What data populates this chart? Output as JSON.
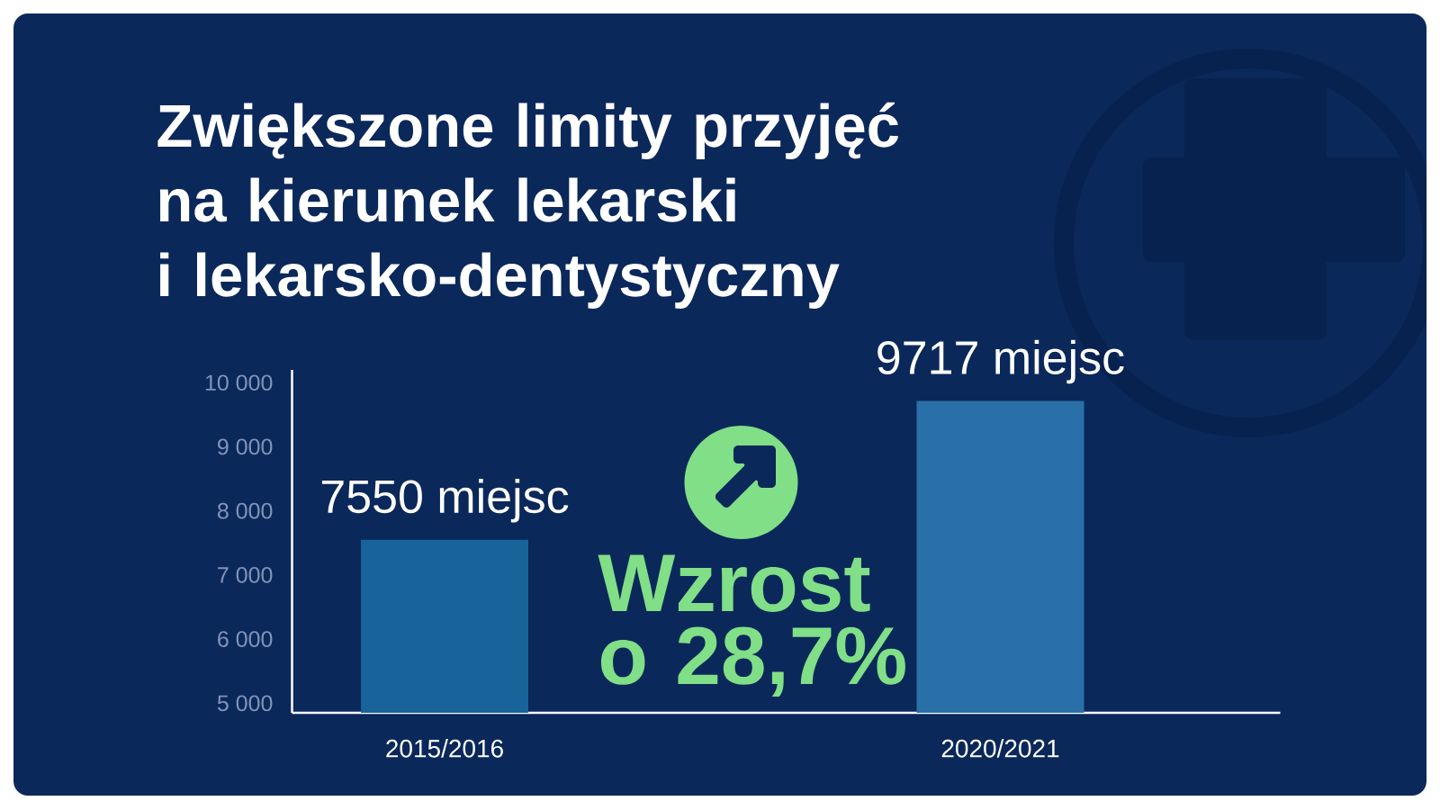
{
  "chart_data": {
    "type": "bar",
    "title": "Zwiększone limity przyjęć\nna kierunek lekarski\ni lekarsko-dentystyczny",
    "categories": [
      "2015/2016",
      "2020/2021"
    ],
    "values": [
      7550,
      9717
    ],
    "colors": [
      "#17639a",
      "#2a70a8"
    ],
    "value_labels": [
      "7550 miejsc",
      "9717 miejsc"
    ],
    "ylim": [
      4850,
      10200
    ],
    "yticks": [
      {
        "value": 5000,
        "label": "5 000"
      },
      {
        "value": 6000,
        "label": "6 000"
      },
      {
        "value": 7000,
        "label": "7 000"
      },
      {
        "value": 8000,
        "label": "8 000"
      },
      {
        "value": 9000,
        "label": "9 000"
      },
      {
        "value": 10000,
        "label": "10 000"
      }
    ],
    "annotations": [
      "Wzrost\no 28,7%"
    ]
  }
}
